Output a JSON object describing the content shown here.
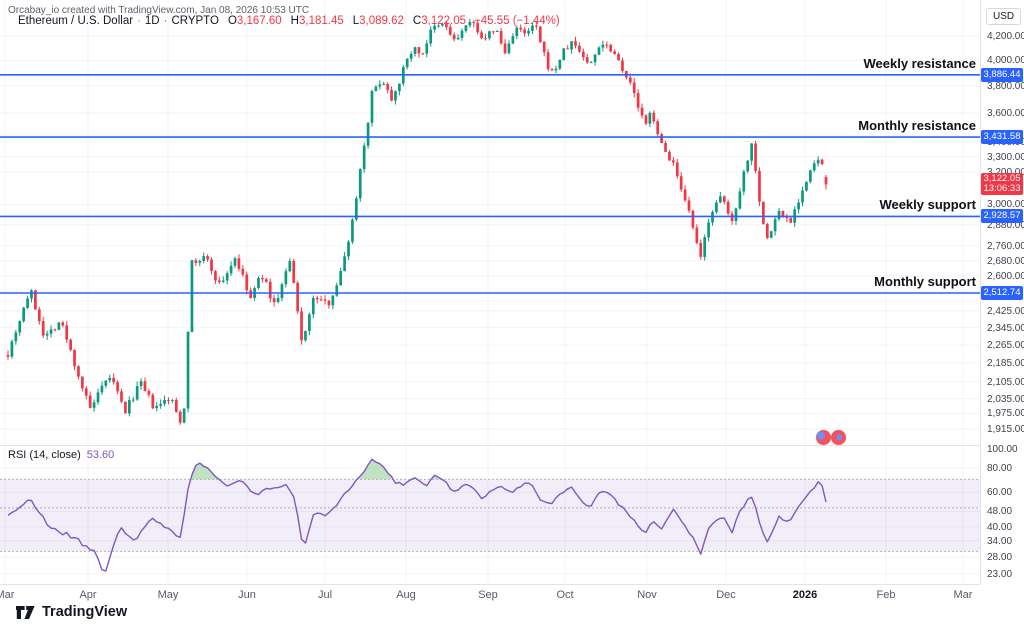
{
  "attribution": "Orcabay_io created with TradingView.com, Jan 08, 2026 10:53 UTC",
  "legend": {
    "symbol": "Ethereum / U.S. Dollar",
    "separator": "·",
    "interval": "1D",
    "exchange": "CRYPTO",
    "o_label": "O",
    "open": "3,167.60",
    "h_label": "H",
    "high": "3,181.45",
    "l_label": "L",
    "low": "3,089.62",
    "c_label": "C",
    "close": "3,122.05",
    "change": "−45.55 (−1.44%)"
  },
  "price_axis": {
    "unit_button": "USD",
    "last_price_badge": {
      "price": "3,122.05",
      "countdown": "13:06:33",
      "color": "#f23645"
    }
  },
  "levels": [
    {
      "name": "weekly-resistance",
      "label": "Weekly resistance",
      "value": 3886.44,
      "badge": "3,886.44"
    },
    {
      "name": "monthly-resistance",
      "label": "Monthly resistance",
      "value": 3431.58,
      "badge": "3,431.58"
    },
    {
      "name": "weekly-support",
      "label": "Weekly support",
      "value": 2928.57,
      "badge": "2,928.57"
    },
    {
      "name": "monthly-support",
      "label": "Monthly support",
      "value": 2512.74,
      "badge": "2,512.74"
    }
  ],
  "rsi": {
    "label": "RSI (14, close)",
    "value": "53.60"
  },
  "footer": {
    "brand": "TradingView"
  },
  "colors": {
    "up": "#0b9981",
    "down": "#f23645",
    "level_line": "#2962ff",
    "rsi_line": "#7e57c2",
    "rsi_band": "rgba(126,87,194,0.10)",
    "rsi_over_fill": "rgba(76,175,80,0.35)",
    "grid": "rgba(42,46,57,0.055)",
    "dashed": "rgba(120,123,134,0.55)"
  },
  "chart_data": [
    {
      "type": "candlestick",
      "title": "Ethereum / U.S. Dollar, 1D, CRYPTO",
      "scale": "log",
      "ylabel": "USD",
      "price_axis_ticks": [
        4200,
        4000,
        3800,
        3600,
        3400,
        3300,
        3200,
        3000,
        2880,
        2760,
        2680,
        2600,
        2425,
        2345,
        2265,
        2185,
        2105,
        2035,
        1975,
        1915
      ],
      "x_axis_months": [
        {
          "label": "Mar"
        },
        {
          "label": "Apr"
        },
        {
          "label": "May"
        },
        {
          "label": "Jun"
        },
        {
          "label": "Jul"
        },
        {
          "label": "Aug"
        },
        {
          "label": "Sep"
        },
        {
          "label": "Oct"
        },
        {
          "label": "Nov"
        },
        {
          "label": "Dec"
        },
        {
          "label": "2026",
          "bold": true
        },
        {
          "label": "Feb"
        },
        {
          "label": "Mar"
        }
      ],
      "last_bar": {
        "open": 3167.6,
        "high": 3181.45,
        "low": 3089.62,
        "close": 3122.05,
        "change": -45.55,
        "change_pct": -1.44
      },
      "level_values": [
        3886.44,
        3431.58,
        2928.57,
        2512.74
      ],
      "trend_anchors": [
        [
          0,
          2230
        ],
        [
          0.027,
          2530
        ],
        [
          0.045,
          2300
        ],
        [
          0.064,
          2380
        ],
        [
          0.1,
          1990
        ],
        [
          0.125,
          2130
        ],
        [
          0.143,
          1980
        ],
        [
          0.161,
          2100
        ],
        [
          0.18,
          1990
        ],
        [
          0.198,
          2040
        ],
        [
          0.214,
          1922
        ],
        [
          0.224,
          2660
        ],
        [
          0.241,
          2700
        ],
        [
          0.259,
          2550
        ],
        [
          0.278,
          2700
        ],
        [
          0.296,
          2480
        ],
        [
          0.31,
          2610
        ],
        [
          0.326,
          2450
        ],
        [
          0.345,
          2680
        ],
        [
          0.359,
          2280
        ],
        [
          0.375,
          2500
        ],
        [
          0.39,
          2450
        ],
        [
          0.406,
          2600
        ],
        [
          0.421,
          2900
        ],
        [
          0.433,
          3300
        ],
        [
          0.445,
          3740
        ],
        [
          0.457,
          3860
        ],
        [
          0.469,
          3710
        ],
        [
          0.482,
          3900
        ],
        [
          0.494,
          4100
        ],
        [
          0.506,
          4050
        ],
        [
          0.518,
          4250
        ],
        [
          0.534,
          4300
        ],
        [
          0.546,
          4150
        ],
        [
          0.559,
          4280
        ],
        [
          0.571,
          4300
        ],
        [
          0.583,
          4150
        ],
        [
          0.595,
          4280
        ],
        [
          0.608,
          4050
        ],
        [
          0.62,
          4280
        ],
        [
          0.632,
          4200
        ],
        [
          0.644,
          4300
        ],
        [
          0.657,
          4000
        ],
        [
          0.666,
          3890
        ],
        [
          0.677,
          4050
        ],
        [
          0.69,
          4150
        ],
        [
          0.702,
          4050
        ],
        [
          0.711,
          3950
        ],
        [
          0.724,
          4150
        ],
        [
          0.738,
          4100
        ],
        [
          0.751,
          3950
        ],
        [
          0.763,
          3780
        ],
        [
          0.779,
          3500
        ],
        [
          0.787,
          3620
        ],
        [
          0.8,
          3350
        ],
        [
          0.812,
          3280
        ],
        [
          0.824,
          3050
        ],
        [
          0.836,
          2900
        ],
        [
          0.846,
          2670
        ],
        [
          0.858,
          2950
        ],
        [
          0.873,
          3040
        ],
        [
          0.885,
          2890
        ],
        [
          0.897,
          3150
        ],
        [
          0.91,
          3400
        ],
        [
          0.922,
          2900
        ],
        [
          0.929,
          2790
        ],
        [
          0.941,
          2960
        ],
        [
          0.956,
          2900
        ],
        [
          0.968,
          3050
        ],
        [
          0.983,
          3220
        ],
        [
          0.993,
          3300
        ],
        [
          1,
          3122.05
        ]
      ]
    },
    {
      "type": "line",
      "name": "RSI (14, close)",
      "period": 14,
      "source": "close",
      "last": 53.6,
      "overbought": 70,
      "midline": 50,
      "oversold": 30,
      "axis_ticks": [
        100,
        80,
        60,
        48,
        40,
        34,
        28,
        23
      ],
      "anchors": [
        [
          0,
          46
        ],
        [
          0.027,
          55
        ],
        [
          0.051,
          40
        ],
        [
          0.082,
          35
        ],
        [
          0.106,
          30
        ],
        [
          0.119,
          23
        ],
        [
          0.137,
          40
        ],
        [
          0.155,
          34
        ],
        [
          0.174,
          44
        ],
        [
          0.192,
          40
        ],
        [
          0.21,
          34
        ],
        [
          0.222,
          70
        ],
        [
          0.231,
          86
        ],
        [
          0.247,
          78
        ],
        [
          0.265,
          65
        ],
        [
          0.284,
          70
        ],
        [
          0.302,
          58
        ],
        [
          0.32,
          63
        ],
        [
          0.339,
          66
        ],
        [
          0.351,
          55
        ],
        [
          0.361,
          31
        ],
        [
          0.375,
          48
        ],
        [
          0.39,
          46
        ],
        [
          0.406,
          55
        ],
        [
          0.421,
          65
        ],
        [
          0.436,
          78
        ],
        [
          0.445,
          88
        ],
        [
          0.461,
          80
        ],
        [
          0.473,
          68
        ],
        [
          0.485,
          66
        ],
        [
          0.498,
          72
        ],
        [
          0.51,
          64
        ],
        [
          0.522,
          74
        ],
        [
          0.534,
          68
        ],
        [
          0.546,
          60
        ],
        [
          0.559,
          66
        ],
        [
          0.571,
          62
        ],
        [
          0.579,
          55
        ],
        [
          0.589,
          60
        ],
        [
          0.601,
          66
        ],
        [
          0.614,
          60
        ],
        [
          0.626,
          64
        ],
        [
          0.638,
          68
        ],
        [
          0.65,
          56
        ],
        [
          0.663,
          52
        ],
        [
          0.675,
          60
        ],
        [
          0.69,
          63
        ],
        [
          0.699,
          55
        ],
        [
          0.711,
          50
        ],
        [
          0.724,
          62
        ],
        [
          0.738,
          58
        ],
        [
          0.751,
          50
        ],
        [
          0.763,
          44
        ],
        [
          0.779,
          36
        ],
        [
          0.787,
          44
        ],
        [
          0.8,
          38
        ],
        [
          0.812,
          50
        ],
        [
          0.824,
          42
        ],
        [
          0.836,
          36
        ],
        [
          0.846,
          29
        ],
        [
          0.858,
          40
        ],
        [
          0.873,
          45
        ],
        [
          0.885,
          38
        ],
        [
          0.897,
          50
        ],
        [
          0.91,
          58
        ],
        [
          0.922,
          37
        ],
        [
          0.929,
          33
        ],
        [
          0.941,
          45
        ],
        [
          0.956,
          42
        ],
        [
          0.968,
          52
        ],
        [
          0.983,
          62
        ],
        [
          0.993,
          70
        ],
        [
          1,
          53.6
        ]
      ]
    }
  ]
}
